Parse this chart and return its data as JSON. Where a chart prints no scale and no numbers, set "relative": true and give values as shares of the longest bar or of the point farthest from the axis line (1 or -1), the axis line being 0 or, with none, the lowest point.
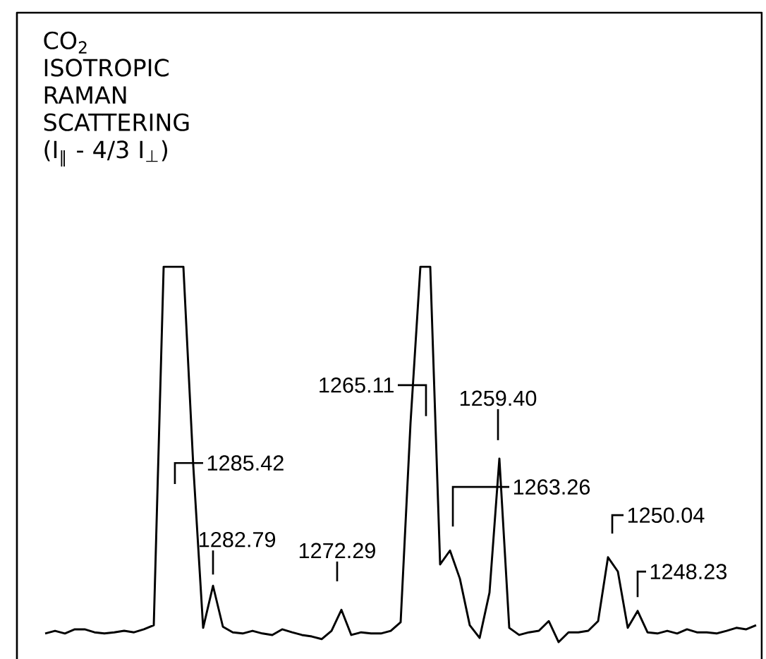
{
  "chart_data": {
    "type": "line",
    "title": "CO$_{2}$ ISOTROPIC RAMAN SCATTERING (I$_{∥}$ - 4/3 I$_{⊥}$)",
    "relative": true,
    "categories": [
      null,
      null,
      null,
      null,
      null,
      null,
      null,
      null,
      null,
      null,
      null,
      null,
      null,
      null,
      null,
      null,
      null,
      null,
      null,
      null,
      null,
      null,
      null,
      null,
      null,
      null,
      null,
      null,
      null,
      null,
      null,
      null,
      null,
      null,
      null,
      null,
      null,
      null,
      null,
      null,
      null,
      null,
      null,
      null,
      null,
      null,
      null,
      null,
      null,
      null,
      null,
      null,
      null,
      null,
      null,
      null,
      null,
      null,
      null,
      null,
      null,
      null,
      null,
      null,
      null,
      null,
      null,
      null,
      null,
      null,
      null,
      null,
      null
    ],
    "series": [
      {
        "color": "#000000",
        "values": [
          0.023,
          0.03,
          0.023,
          0.034,
          0.034,
          0.026,
          0.023,
          0.026,
          0.03,
          0.026,
          0.034,
          0.045,
          1,
          1,
          1,
          0.47,
          0.038,
          0.15,
          0.041,
          0.026,
          0.023,
          0.03,
          0.023,
          0.019,
          0.034,
          0.026,
          0.019,
          0.015,
          0.008,
          0.03,
          0.086,
          0.019,
          0.026,
          0.023,
          0.023,
          0.03,
          0.053,
          0.583,
          1,
          1,
          0.207,
          0.244,
          0.169,
          0.045,
          0.011,
          0.132,
          0.489,
          0.038,
          0.019,
          0.026,
          0.03,
          0.056,
          0,
          0.026,
          0.026,
          0.03,
          0.056,
          0.226,
          0.188,
          0.038,
          0.083,
          0.026,
          0.023,
          0.03,
          0.023,
          0.034,
          0.026,
          0.026,
          0.023,
          0.03,
          0.038,
          0.034,
          0.045
        ]
      }
    ],
    "annotations": [
      "1285.42",
      "1282.79",
      "1272.29",
      "1265.11",
      "1263.26",
      "1259.40",
      "1250.04",
      "1248.23"
    ]
  }
}
